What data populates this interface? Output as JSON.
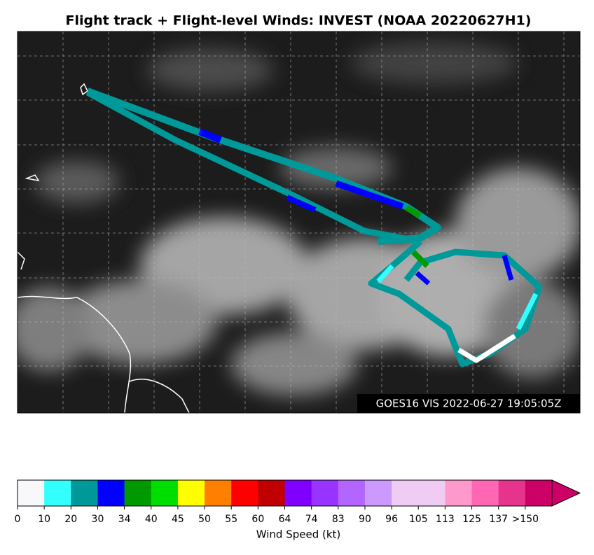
{
  "title": "Flight track + Flight-level Winds: INVEST (NOAA 20220627H1)",
  "image_label": "GOES16 VIS 2022-06-27 19:05:05Z",
  "colorbar": {
    "label": "Wind Speed (kt)",
    "ticks": [
      0,
      10,
      20,
      30,
      34,
      40,
      45,
      50,
      55,
      60,
      64,
      74,
      83,
      90,
      96,
      105,
      113,
      125,
      137,
      {
        "value": 150,
        "label": ">150"
      }
    ],
    "colors": [
      "#f8f8fa",
      "#33ffff",
      "#009999",
      "#0000ff",
      "#009900",
      "#00dd00",
      "#ffff00",
      "#ff8000",
      "#ff0000",
      "#c00000",
      "#8000ff",
      "#9933ff",
      "#b366ff",
      "#cc99ff",
      "#f0ccf5",
      "#f0ccf5",
      "#ff99cc",
      "#ff66b3",
      "#e6338c",
      "#cc0066"
    ]
  }
}
